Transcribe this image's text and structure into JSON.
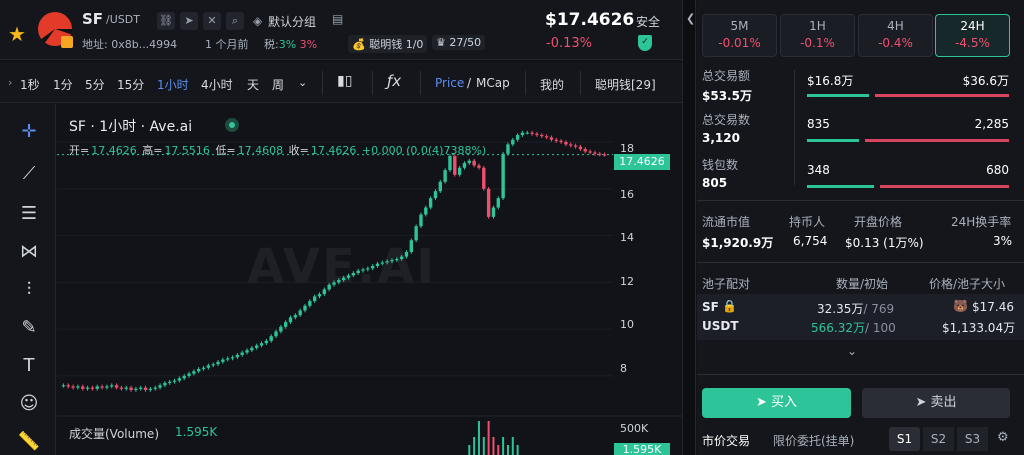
{
  "header": {
    "symbol": "SF",
    "pair": "/USDT",
    "tag_label": "默认分组",
    "address": "地址: 0x8b...4994",
    "age": "1 个月前",
    "tax_label": "税:",
    "tax_buy": "3%",
    "tax_sell": "3%",
    "smart_money": "聪明钱 1/0",
    "holders_rank": "27/50",
    "price": "$17.4626",
    "change": "-0.13%",
    "safety_label": "安全",
    "icons": [
      "star-icon",
      "chain-icon",
      "telegram-icon",
      "x-icon",
      "search-icon",
      "tag-icon",
      "message-icon",
      "shield-icon"
    ]
  },
  "toolbar": {
    "timeframes": [
      "1秒",
      "1分",
      "5分",
      "15分",
      "1小时",
      "4小时",
      "天",
      "周"
    ],
    "active_timeframe": "1小时",
    "dropdown_icon": "chevron-down-icon",
    "indicator_icon": "candles-icon",
    "formula_icon": "fx-icon",
    "price_label": "Price",
    "mcap_label": "MCap",
    "mine_label": "我的",
    "smart_label": "聪明钱[29]"
  },
  "tools": [
    "crosshair-icon",
    "trendline-icon",
    "fib-icon",
    "pattern-icon",
    "measure-icon",
    "brush-icon",
    "text-icon",
    "emoji-icon",
    "ruler-icon"
  ],
  "chart": {
    "title": "SF · 1小时 · Ave.ai",
    "watermark": "AVE.AI",
    "ohlc": {
      "open_label": "开=",
      "open": "17.4626",
      "high_label": "高=",
      "high": "17.5516",
      "low_label": "低=",
      "low": "17.4608",
      "close_label": "收=",
      "close": "17.4626",
      "change": "+0.000 (0.0(4)7388%)"
    },
    "y_ticks": [
      "18",
      "16",
      "14",
      "12",
      "10",
      "8"
    ],
    "last_price_tag": "17.4626",
    "volume_label": "成交量(Volume)",
    "volume_value": "1.595K",
    "volume_axis": "500K",
    "volume_tag": "1.595K",
    "up_color": "#2ec49a",
    "down_color": "#f0506e"
  },
  "chart_data": {
    "type": "candlestick",
    "title": "SF · 1小时 · Ave.ai",
    "ylim": [
      6.8,
      18.6
    ],
    "y_ticks": [
      8,
      10,
      12,
      14,
      16,
      18
    ],
    "closes": [
      7.6,
      7.55,
      7.5,
      7.55,
      7.45,
      7.5,
      7.45,
      7.55,
      7.5,
      7.55,
      7.6,
      7.5,
      7.45,
      7.5,
      7.4,
      7.45,
      7.5,
      7.4,
      7.45,
      7.5,
      7.6,
      7.7,
      7.75,
      7.8,
      7.9,
      8.0,
      8.1,
      8.2,
      8.3,
      8.35,
      8.45,
      8.5,
      8.6,
      8.7,
      8.75,
      8.8,
      8.9,
      9.0,
      9.1,
      9.2,
      9.3,
      9.4,
      9.5,
      9.7,
      9.9,
      10.1,
      10.3,
      10.5,
      10.6,
      10.8,
      11.0,
      11.2,
      11.4,
      11.5,
      11.7,
      11.9,
      12.0,
      12.1,
      12.2,
      12.3,
      12.4,
      12.5,
      12.55,
      12.6,
      12.7,
      12.8,
      12.85,
      12.9,
      12.95,
      13.0,
      13.1,
      13.3,
      13.8,
      14.4,
      14.9,
      15.2,
      15.6,
      15.9,
      16.3,
      16.8,
      17.4,
      16.6,
      16.9,
      17.1,
      17.2,
      17.0,
      16.9,
      16.0,
      14.8,
      15.2,
      15.6,
      17.5,
      17.9,
      18.1,
      18.3,
      18.4,
      18.4,
      18.35,
      18.3,
      18.25,
      18.2,
      18.1,
      18.05,
      18.0,
      17.9,
      17.85,
      17.8,
      17.7,
      17.6,
      17.55,
      17.5,
      17.47,
      17.46
    ]
  },
  "panel": {
    "timeframes": [
      {
        "label": "5M",
        "change": "-0.01%"
      },
      {
        "label": "1H",
        "change": "-0.1%"
      },
      {
        "label": "4H",
        "change": "-0.4%"
      },
      {
        "label": "24H",
        "change": "-4.5%"
      }
    ],
    "active_timeframe": "24H",
    "stats": [
      {
        "label": "总交易额",
        "value": "$53.5万",
        "buy": "$16.8万",
        "sell": "$36.6万",
        "buy_ratio": 0.31
      },
      {
        "label": "总交易数",
        "value": "3,120",
        "buy": "835",
        "sell": "2,285",
        "buy_ratio": 0.27
      },
      {
        "label": "钱包数",
        "value": "805",
        "buy": "348",
        "sell": "680",
        "buy_ratio": 0.34
      }
    ],
    "metrics": [
      {
        "label": "流通市值",
        "value": "$1,920.9万"
      },
      {
        "label": "持币人",
        "value": "6,754"
      },
      {
        "label": "开盘价格",
        "value": "$0.13 (1万%)"
      },
      {
        "label": "24H换手率",
        "value": "3%"
      }
    ],
    "pool_headers": [
      "池子配对",
      "数量/初始",
      "价格/池子大小"
    ],
    "pool": [
      {
        "token": "SF",
        "amount": "32.35万",
        "initial": "/ 769",
        "price": "$17.46"
      },
      {
        "token": "USDT",
        "amount": "566.32万",
        "initial": "/ 100",
        "price": "$1,133.04万"
      }
    ],
    "buy_label": "买入",
    "sell_label": "卖出",
    "order_tabs": [
      "市价交易",
      "限价委托(挂单)"
    ],
    "slots": [
      "S1",
      "S2",
      "S3"
    ],
    "active_slot": "S1"
  }
}
